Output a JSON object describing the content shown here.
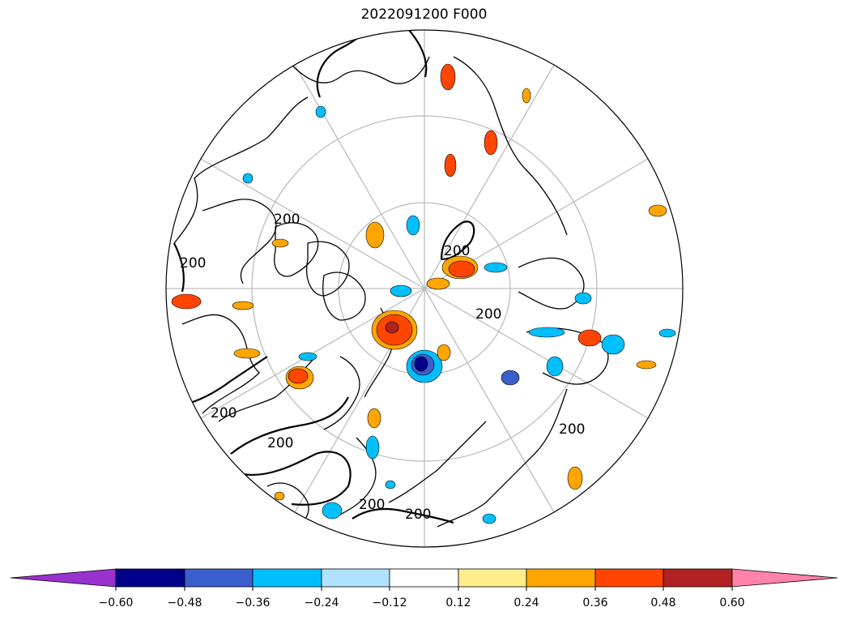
{
  "title": "2022091200 F000",
  "contour_labels": [
    "200",
    "200",
    "200",
    "200",
    "200",
    "200",
    "200",
    "200",
    "200"
  ],
  "colorbar": {
    "ticks": [
      "−0.60",
      "−0.48",
      "−0.36",
      "−0.24",
      "−0.12",
      "0.12",
      "0.24",
      "0.36",
      "0.48",
      "0.60"
    ],
    "colors": {
      "extend_low": "#9a32cd",
      "bins": [
        "#00008b",
        "#3a5fcd",
        "#00bfff",
        "#b0e2ff",
        "#ffffff",
        "#ffec8b",
        "#ffa500",
        "#ff4500",
        "#b22222"
      ],
      "extend_high": "#ff82ab"
    }
  },
  "colors": {
    "neg_strong": "#00008b",
    "neg_mid": "#3a5fcd",
    "neg": "#00bfff",
    "neg_weak": "#b0e2ff",
    "pos_weak": "#ffec8b",
    "pos": "#ffa500",
    "pos_mid": "#ff4500",
    "pos_strong": "#b22222",
    "graticule": "#bdbdbd"
  }
}
